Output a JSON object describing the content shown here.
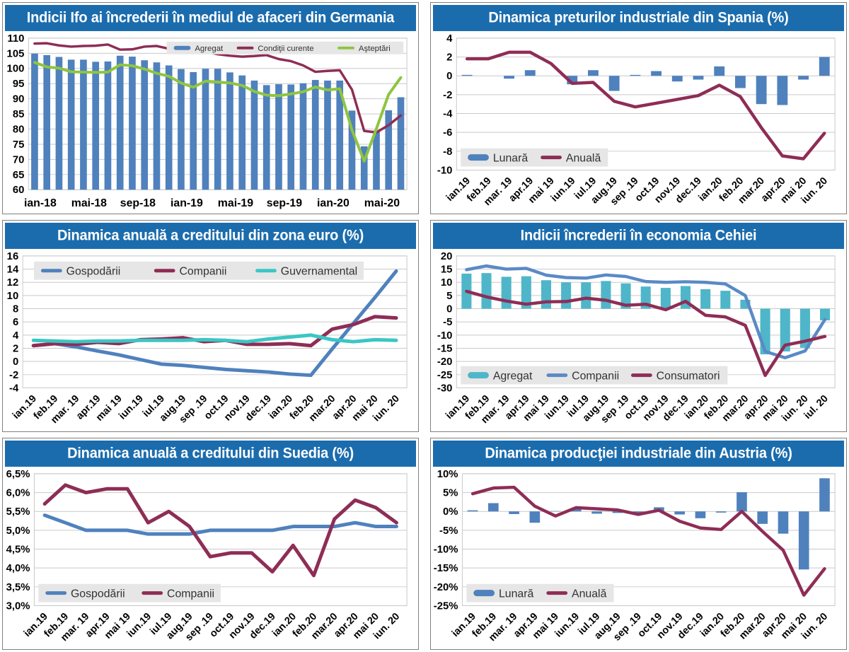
{
  "theme": {
    "title_bar_bg": "#1B6CAD",
    "title_text": "#FFFFFF",
    "grid_line": "#C9C9C9",
    "axis_text": "#000000",
    "legend_bg": "#E6E6E6",
    "legend_text": "#333333",
    "steel_blue": "#4F81BD",
    "wine": "#8E2D55",
    "green": "#8EC540",
    "teal_bar": "#4FB6C9",
    "teal_line": "#3BC6C4",
    "light_blue_line": "#5A8AC6"
  },
  "chart_data": [
    {
      "type": "bar+line",
      "title": "Indicii Ifo ai încrederii în mediul de afaceri din Germania",
      "n_points": 31,
      "x_label_style": "horizontal",
      "x_tick_labels": [
        "ian-18",
        "mai-18",
        "sep-18",
        "ian-19",
        "mai-19",
        "sep-19",
        "ian-20",
        "mai-20"
      ],
      "x_tick_indices": [
        0,
        4,
        8,
        12,
        16,
        20,
        24,
        28
      ],
      "ylim": [
        60,
        110
      ],
      "y_ticks": [
        110,
        105,
        100,
        95,
        90,
        85,
        80,
        75,
        70,
        65,
        60
      ],
      "y_tick_labels": [
        "110",
        "105",
        "100",
        "95",
        "90",
        "85",
        "80",
        "75",
        "70",
        "65",
        "60"
      ],
      "bar_baseline": 60,
      "legend_position": "top-right",
      "series": [
        {
          "name": "Agregat",
          "type": "bar",
          "color": "#4F81BD",
          "values": [
            104.9,
            104.4,
            103.8,
            102.9,
            102.9,
            102.2,
            102.3,
            104.2,
            103.9,
            102.7,
            102.0,
            101.0,
            99.8,
            98.8,
            99.9,
            99.9,
            98.7,
            97.7,
            96.0,
            94.5,
            94.8,
            94.7,
            95.1,
            96.2,
            96.0,
            96.0,
            86.1,
            74.3,
            79.5,
            86.2,
            90.5
          ]
        },
        {
          "name": "Condiţii curente",
          "type": "line",
          "color": "#8E2D55",
          "width": 3.5,
          "values": [
            108.2,
            108.3,
            107.6,
            107.2,
            107.4,
            107.5,
            107.9,
            106.2,
            106.3,
            107.2,
            107.4,
            106.5,
            106.0,
            105.8,
            105.6,
            104.7,
            104.2,
            103.9,
            104.1,
            104.4,
            103.1,
            102.4,
            101.0,
            98.9,
            99.2,
            99.4,
            93.0,
            79.4,
            78.9,
            81.3,
            84.5
          ]
        },
        {
          "name": "Aşteptări",
          "type": "line",
          "color": "#8EC540",
          "width": 4,
          "values": [
            102.0,
            100.5,
            100.1,
            98.9,
            98.8,
            98.7,
            98.8,
            101.2,
            100.9,
            99.8,
            98.4,
            97.4,
            95.2,
            93.8,
            95.8,
            95.5,
            95.2,
            94.4,
            92.4,
            91.2,
            91.0,
            91.6,
            92.3,
            93.9,
            92.9,
            93.3,
            79.7,
            69.4,
            80.1,
            91.4,
            97.0
          ]
        }
      ]
    },
    {
      "type": "bar+line",
      "title": "Dinamica preturilor industriale din Spania (%)",
      "n_points": 18,
      "x_label_style": "angled",
      "x_labels": [
        "ian.19",
        "feb.19",
        "mar. 19",
        "apr.19",
        "mai 19",
        "iun.19",
        "iul.19",
        "aug.19",
        "sep .19",
        "oct.19",
        "nov.19",
        "dec.19",
        "ian.20",
        "feb.20",
        "mar.20",
        "apr.20",
        "mai 20",
        "iun. 20"
      ],
      "ylim": [
        -10,
        4
      ],
      "y_ticks": [
        4,
        2,
        0,
        -2,
        -4,
        -6,
        -8,
        -10
      ],
      "y_tick_labels": [
        "4",
        "2",
        "0",
        "-2",
        "-4",
        "-6",
        "-8",
        "-10"
      ],
      "bar_baseline": 0,
      "legend_position": "bottom-left",
      "series": [
        {
          "name": "Lunară",
          "type": "bar",
          "color": "#4F81BD",
          "values": [
            0.1,
            0.0,
            -0.3,
            0.6,
            0.0,
            -0.9,
            0.6,
            -1.6,
            0.1,
            0.5,
            -0.6,
            -0.4,
            1.0,
            -1.3,
            -3.0,
            -3.1,
            -0.4,
            2.0
          ]
        },
        {
          "name": "Anuală",
          "type": "line",
          "color": "#8E2D55",
          "width": 4.5,
          "values": [
            1.8,
            1.8,
            2.5,
            2.5,
            1.3,
            -0.8,
            -0.7,
            -2.7,
            -3.3,
            -2.9,
            -2.5,
            -2.1,
            -1.0,
            -2.2,
            -5.5,
            -8.5,
            -8.8,
            -6.1
          ]
        }
      ]
    },
    {
      "type": "line",
      "title": "Dinamica anuală a creditului din zona euro (%)",
      "n_points": 18,
      "x_label_style": "angled",
      "x_labels": [
        "ian.19",
        "feb.19",
        "mar. 19",
        "apr.19",
        "mai 19",
        "iun.19",
        "iul.19",
        "aug.19",
        "sep .19",
        "oct.19",
        "nov.19",
        "dec.19",
        "ian.20",
        "feb.20",
        "mar.20",
        "apr.20",
        "mai 20",
        "iun. 20"
      ],
      "ylim": [
        -4,
        16
      ],
      "y_ticks": [
        16,
        14,
        12,
        10,
        8,
        6,
        4,
        2,
        0,
        -2,
        -4
      ],
      "y_tick_labels": [
        "16",
        "14",
        "12",
        "10",
        "8",
        "6",
        "4",
        "2",
        "0",
        "-2",
        "-4"
      ],
      "legend_position": "top-left",
      "series": [
        {
          "name": "Gospodării",
          "type": "line",
          "color": "#4F81BD",
          "width": 5,
          "values": [
            2.4,
            2.7,
            2.2,
            1.6,
            1.0,
            0.3,
            -0.4,
            -0.6,
            -0.9,
            -1.2,
            -1.4,
            -1.6,
            -1.9,
            -2.1,
            1.9,
            5.8,
            9.7,
            13.7
          ]
        },
        {
          "name": "Companii",
          "type": "line",
          "color": "#8E2D55",
          "width": 5,
          "values": [
            2.4,
            2.7,
            2.6,
            2.9,
            2.7,
            3.3,
            3.4,
            3.6,
            3.0,
            3.2,
            2.6,
            2.6,
            2.7,
            2.4,
            4.9,
            5.6,
            6.8,
            6.6
          ]
        },
        {
          "name": "Guvernamental",
          "type": "line",
          "color": "#3BC6C4",
          "width": 5,
          "values": [
            3.2,
            3.1,
            3.0,
            3.1,
            3.1,
            3.2,
            3.2,
            3.2,
            3.3,
            3.2,
            3.0,
            3.4,
            3.7,
            4.0,
            3.3,
            3.0,
            3.3,
            3.2
          ]
        }
      ]
    },
    {
      "type": "bar+line",
      "title": "Indicii încrederii în economia Cehiei",
      "n_points": 19,
      "x_label_style": "angled",
      "x_labels": [
        "ian.19",
        "feb.19",
        "mar. 19",
        "apr.19",
        "mai 19",
        "iun.19",
        "iul.19",
        "aug.19",
        "sep .19",
        "oct.19",
        "nov.19",
        "dec.19",
        "ian.20",
        "feb.20",
        "mar.20",
        "apr.20",
        "mai 20",
        "iun. 20",
        "iul. 20"
      ],
      "ylim": [
        -30,
        20
      ],
      "y_ticks": [
        20,
        15,
        10,
        5,
        0,
        -5,
        -10,
        -15,
        -20,
        -25,
        -30
      ],
      "y_tick_labels": [
        "20",
        "15",
        "10",
        "5",
        "0",
        "-5",
        "-10",
        "-15",
        "-20",
        "-25",
        "-30"
      ],
      "bar_baseline": 0,
      "legend_position": "bottom-left",
      "series": [
        {
          "name": "Agregat",
          "type": "bar",
          "color": "#4FB6C9",
          "values": [
            13.3,
            13.5,
            12.1,
            12.3,
            10.8,
            10.0,
            10.0,
            10.5,
            9.6,
            8.4,
            7.9,
            8.6,
            7.4,
            6.8,
            3.4,
            -17.3,
            -16.2,
            -14.8,
            -4.4
          ]
        },
        {
          "name": "Companii",
          "type": "line",
          "color": "#5A8AC6",
          "width": 4.5,
          "values": [
            14.8,
            16.2,
            15.0,
            15.3,
            12.7,
            11.8,
            11.6,
            12.8,
            12.2,
            10.3,
            10.0,
            10.2,
            10.0,
            9.4,
            5.0,
            -16.2,
            -18.6,
            -16.0,
            -4.1
          ]
        },
        {
          "name": "Consumatori",
          "type": "line",
          "color": "#8E2D55",
          "width": 4.5,
          "values": [
            6.6,
            4.5,
            2.9,
            1.7,
            2.6,
            2.7,
            4.0,
            3.2,
            1.3,
            1.7,
            -0.4,
            2.8,
            -2.5,
            -3.1,
            -6.3,
            -25.3,
            -13.8,
            -12.3,
            -10.5
          ]
        }
      ]
    },
    {
      "type": "line",
      "title": "Dinamica anuală a creditului din Suedia (%)",
      "n_points": 18,
      "x_label_style": "angled",
      "x_labels": [
        "ian.19",
        "feb.19",
        "mar. 19",
        "apr.19",
        "mai 19",
        "iun.19",
        "iul.19",
        "aug.19",
        "sep .19",
        "oct.19",
        "nov.19",
        "dec.19",
        "ian.20",
        "feb.20",
        "mar.20",
        "apr.20",
        "mai 20",
        "iun. 20"
      ],
      "ylim": [
        3.0,
        6.5
      ],
      "y_ticks": [
        6.5,
        6.0,
        5.5,
        5.0,
        4.5,
        4.0,
        3.5,
        3.0
      ],
      "y_tick_labels": [
        "6,5%",
        "6,0%",
        "5,5%",
        "5,0%",
        "4,5%",
        "4,0%",
        "3,5%",
        "3,0%"
      ],
      "legend_position": "bottom-left",
      "series": [
        {
          "name": "Gospodării",
          "type": "line",
          "color": "#4F81BD",
          "width": 5,
          "values": [
            5.4,
            5.2,
            5.0,
            5.0,
            5.0,
            4.9,
            4.9,
            4.9,
            5.0,
            5.0,
            5.0,
            5.0,
            5.1,
            5.1,
            5.1,
            5.2,
            5.1,
            5.1
          ]
        },
        {
          "name": "Companii",
          "type": "line",
          "color": "#8E2D55",
          "width": 5,
          "values": [
            5.7,
            6.2,
            6.0,
            6.1,
            6.1,
            5.2,
            5.5,
            5.1,
            4.3,
            4.4,
            4.4,
            3.9,
            4.6,
            3.8,
            5.3,
            5.8,
            5.6,
            5.2
          ]
        }
      ]
    },
    {
      "type": "bar+line",
      "title": "Dinamica producţiei industriale din Austria (%)",
      "n_points": 18,
      "x_label_style": "angled",
      "x_labels": [
        "ian.19",
        "feb.19",
        "mar. 19",
        "apr.19",
        "mai 19",
        "iun.19",
        "iul.19",
        "aug.19",
        "sep .19",
        "oct.19",
        "nov.19",
        "dec.19",
        "ian.20",
        "feb.20",
        "mar.20",
        "apr.20",
        "mai 20",
        "iun. 20"
      ],
      "ylim": [
        -25,
        10
      ],
      "y_ticks": [
        10,
        5,
        0,
        -5,
        -10,
        -15,
        -20,
        -25
      ],
      "y_tick_labels": [
        "10%",
        "5%",
        "0%",
        "-5%",
        "-10%",
        "-15%",
        "-20%",
        "-25%"
      ],
      "bar_baseline": 0,
      "legend_position": "bottom-left",
      "series": [
        {
          "name": "Lunară",
          "type": "bar",
          "color": "#4F81BD",
          "values": [
            0.3,
            2.2,
            -0.7,
            -3.0,
            0.1,
            0.6,
            -0.6,
            -0.4,
            -0.9,
            1.1,
            -0.8,
            -1.8,
            -0.3,
            5.1,
            -3.3,
            -5.9,
            -15.4,
            8.8
          ]
        },
        {
          "name": "Anuală",
          "type": "line",
          "color": "#8E2D55",
          "width": 4.5,
          "values": [
            4.7,
            6.2,
            6.4,
            1.4,
            -1.2,
            1.0,
            0.7,
            0.4,
            -0.8,
            0.3,
            -2.6,
            -4.4,
            -4.8,
            0.0,
            -5.3,
            -10.3,
            -22.2,
            -15.2
          ]
        }
      ]
    }
  ]
}
